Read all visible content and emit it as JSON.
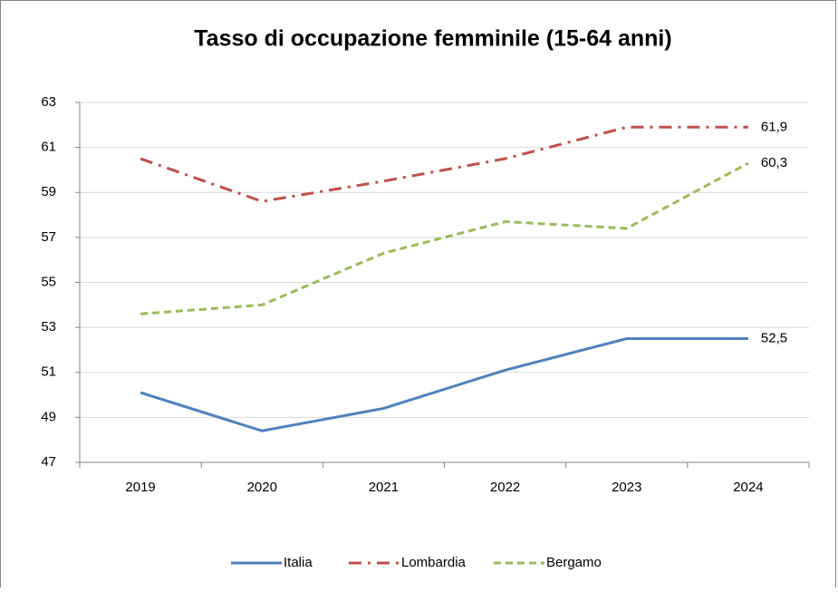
{
  "chart_data": {
    "type": "line",
    "title": "Tasso di occupazione femminile (15-64 anni)",
    "categories": [
      "2019",
      "2020",
      "2021",
      "2022",
      "2023",
      "2024"
    ],
    "ylim": [
      47,
      63
    ],
    "yticks": [
      47,
      49,
      51,
      53,
      55,
      57,
      59,
      61,
      63
    ],
    "grid": true,
    "legend": "bottom",
    "series": [
      {
        "name": "Italia",
        "color": "#4f81bd",
        "values": [
          50.1,
          48.4,
          49.4,
          51.1,
          52.5,
          52.5
        ],
        "value_labels": [
          null,
          null,
          null,
          null,
          null,
          "52,5"
        ]
      },
      {
        "name": "Lombardia",
        "color": "#c0504d",
        "values": [
          60.5,
          58.6,
          59.5,
          60.5,
          61.9,
          61.9
        ],
        "value_labels": [
          null,
          null,
          null,
          null,
          null,
          "61,9"
        ]
      },
      {
        "name": "Bergamo",
        "color": "#9bbb59",
        "values": [
          53.6,
          54.0,
          56.3,
          57.7,
          57.4,
          60.3
        ],
        "value_labels": [
          null,
          null,
          null,
          null,
          null,
          "60,3"
        ]
      }
    ]
  }
}
